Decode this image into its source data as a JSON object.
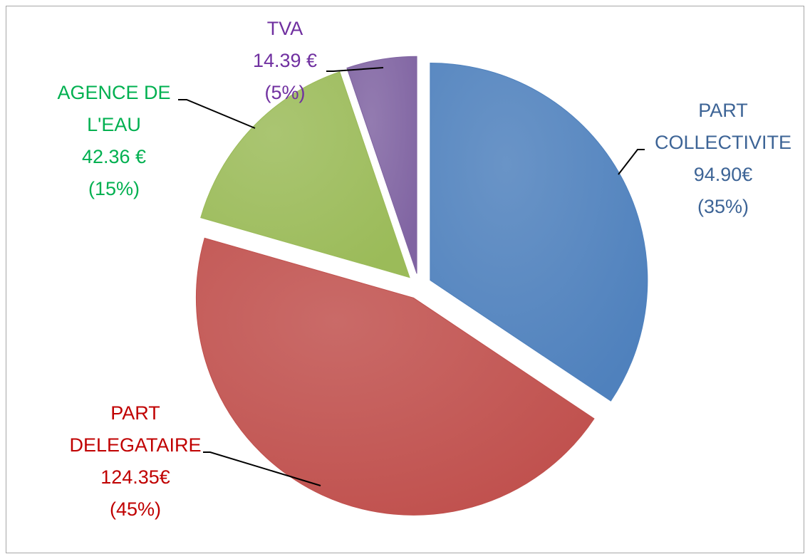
{
  "chart_data": {
    "type": "pie",
    "categories": [
      "PART COLLECTIVITE",
      "PART DELEGATAIRE",
      "AGENCE DE L'EAU",
      "TVA"
    ],
    "values": [
      94.9,
      124.35,
      42.36,
      14.39
    ],
    "value_labels": [
      "94.90€",
      "124.35€",
      "42.36 €",
      "14.39 €"
    ],
    "percents": [
      35,
      45,
      15,
      5
    ],
    "percent_labels": [
      "(35%)",
      "(45%)",
      "(15%)",
      "(5%)"
    ],
    "colors": [
      "#4f81bd",
      "#c0504d",
      "#9bbb59",
      "#8064a2"
    ],
    "label_colors": [
      "#3d6496",
      "#c00000",
      "#00b050",
      "#7030a0"
    ]
  }
}
